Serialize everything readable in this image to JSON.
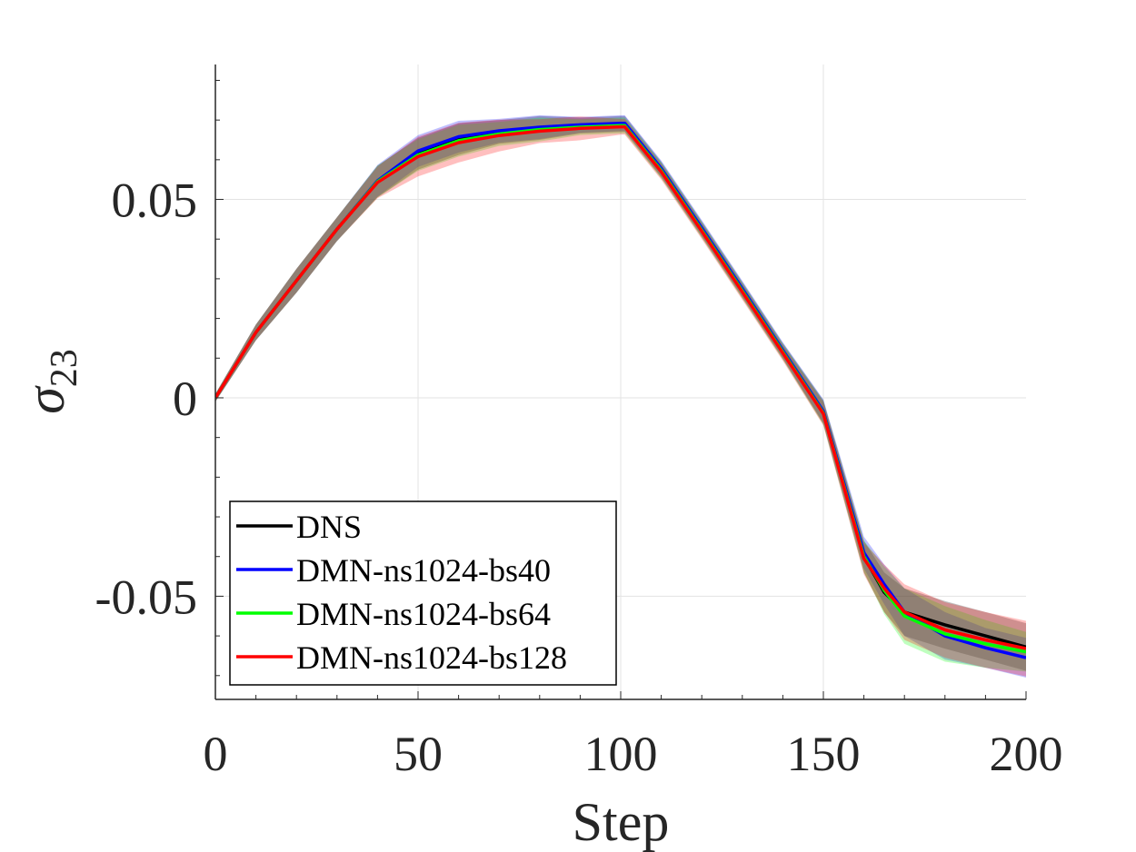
{
  "chart_data": {
    "type": "line",
    "title": "",
    "xlabel": "Step",
    "ylabel": "σ",
    "ylabel_subscript": "23",
    "xlim": [
      0,
      200
    ],
    "ylim": [
      -0.076,
      0.084
    ],
    "xticks": [
      0,
      50,
      100,
      150,
      200
    ],
    "xtick_labels": [
      "0",
      "50",
      "100",
      "150",
      "200"
    ],
    "yticks": [
      -0.05,
      0,
      0.05
    ],
    "ytick_labels": [
      "-0.05",
      "0",
      "0.05"
    ],
    "grid": true,
    "legend_position": "bottom-left",
    "x": [
      0,
      10,
      20,
      30,
      40,
      50,
      60,
      70,
      80,
      90,
      100,
      101,
      110,
      120,
      130,
      140,
      150,
      160,
      165,
      170,
      180,
      190,
      200
    ],
    "series": [
      {
        "name": "DNS",
        "color": "#000000",
        "values": [
          0,
          0.0165,
          0.0295,
          0.0425,
          0.0545,
          0.0615,
          0.0652,
          0.067,
          0.068,
          0.0686,
          0.069,
          0.069,
          0.0575,
          0.0425,
          0.0272,
          0.0118,
          -0.0036,
          -0.04,
          -0.049,
          -0.054,
          -0.0572,
          -0.06,
          -0.0628
        ],
        "band": [
          0.001,
          0.002,
          0.003,
          0.003,
          0.004,
          0.004,
          0.004,
          0.003,
          0.003,
          0.002,
          0.002,
          0.002,
          0.002,
          0.002,
          0.002,
          0.002,
          0.003,
          0.004,
          0.005,
          0.006,
          0.006,
          0.006,
          0.006
        ]
      },
      {
        "name": "DMN-ns1024-bs40",
        "color": "#0000ff",
        "values": [
          0,
          0.0165,
          0.0295,
          0.0425,
          0.0547,
          0.0622,
          0.0658,
          0.0673,
          0.0682,
          0.0688,
          0.0692,
          0.0692,
          0.0578,
          0.0428,
          0.0275,
          0.012,
          -0.0034,
          -0.039,
          -0.047,
          -0.054,
          -0.06,
          -0.063,
          -0.0655
        ],
        "band": [
          0.001,
          0.002,
          0.003,
          0.003,
          0.004,
          0.004,
          0.004,
          0.003,
          0.003,
          0.002,
          0.002,
          0.002,
          0.002,
          0.002,
          0.002,
          0.002,
          0.003,
          0.004,
          0.005,
          0.006,
          0.006,
          0.005,
          0.005
        ]
      },
      {
        "name": "DMN-ns1024-bs64",
        "color": "#00ff00",
        "values": [
          0,
          0.0165,
          0.0295,
          0.0425,
          0.0545,
          0.0612,
          0.0648,
          0.0665,
          0.0676,
          0.0682,
          0.0686,
          0.0686,
          0.0573,
          0.0423,
          0.027,
          0.0116,
          -0.0038,
          -0.04,
          -0.0485,
          -0.055,
          -0.0595,
          -0.062,
          -0.064
        ],
        "band": [
          0.001,
          0.002,
          0.003,
          0.003,
          0.004,
          0.004,
          0.004,
          0.003,
          0.003,
          0.002,
          0.002,
          0.002,
          0.002,
          0.002,
          0.002,
          0.002,
          0.003,
          0.004,
          0.006,
          0.007,
          0.007,
          0.006,
          0.005
        ]
      },
      {
        "name": "DMN-ns1024-bs128",
        "color": "#ff0000",
        "values": [
          0,
          0.0165,
          0.0295,
          0.0425,
          0.0543,
          0.0608,
          0.0643,
          0.0661,
          0.0672,
          0.0679,
          0.0683,
          0.0683,
          0.057,
          0.042,
          0.0267,
          0.0113,
          -0.004,
          -0.0405,
          -0.048,
          -0.054,
          -0.0585,
          -0.061,
          -0.0632
        ],
        "band": [
          0.001,
          0.002,
          0.003,
          0.003,
          0.004,
          0.005,
          0.005,
          0.004,
          0.003,
          0.003,
          0.002,
          0.002,
          0.002,
          0.002,
          0.002,
          0.002,
          0.003,
          0.004,
          0.006,
          0.007,
          0.007,
          0.007,
          0.007
        ]
      }
    ]
  }
}
